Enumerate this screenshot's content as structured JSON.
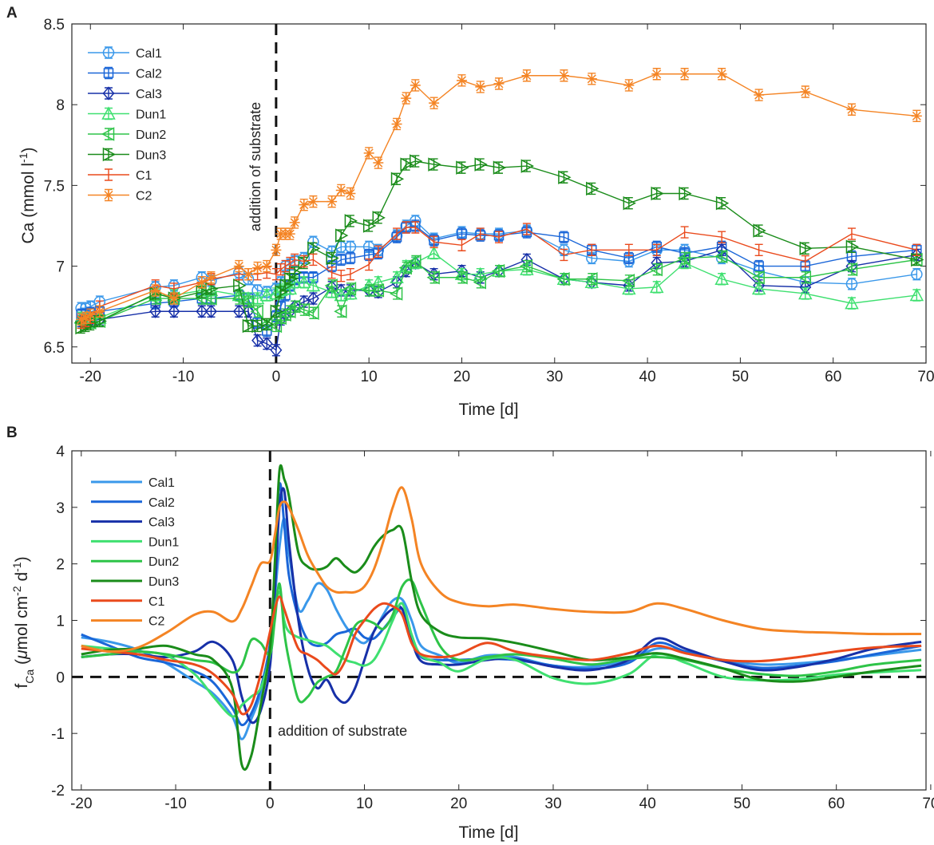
{
  "colors": {
    "Cal1": "#3a98ea",
    "Cal2": "#1a66d8",
    "Cal3": "#1730a8",
    "Dun1": "#3fe070",
    "Dun2": "#2ec448",
    "Dun3": "#1a8c1a",
    "C1": "#ea4a1c",
    "C2": "#f48424"
  },
  "chart_data": [
    {
      "panel": "A",
      "type": "line",
      "title": "",
      "xlabel": "Time [d]",
      "ylabel": "Ca (mmol l-1)",
      "ylabel_parts": {
        "base": "Ca (mmol l",
        "sup": "-1",
        "end": ")"
      },
      "xlim": [
        -22,
        70
      ],
      "ylim": [
        6.4,
        8.5
      ],
      "xticks": [
        -20,
        -10,
        0,
        10,
        20,
        30,
        40,
        50,
        60,
        70
      ],
      "xtick_labels": [
        "-20",
        "-10",
        "0",
        "10",
        "20",
        "30",
        "40",
        "50",
        "60",
        "70"
      ],
      "yticks": [
        6.5,
        7,
        7.5,
        8,
        8.5
      ],
      "ytick_labels": [
        "6.5",
        "7",
        "7.5",
        "8",
        "8.5"
      ],
      "annotation": "addition of substrate",
      "vline_x": 0,
      "legend_position": "top-left",
      "x": [
        -21,
        -20.5,
        -20,
        -19,
        -13,
        -11,
        -8,
        -7,
        -4,
        -3,
        -2,
        -1,
        0,
        0.5,
        1,
        1.5,
        2,
        3,
        4,
        6,
        7,
        8,
        10,
        11,
        13,
        14,
        15,
        17,
        20,
        22,
        24,
        27,
        31,
        34,
        38,
        41,
        44,
        48,
        52,
        57,
        62,
        69
      ],
      "series": [
        {
          "name": "Cal1",
          "marker": "circle",
          "values": [
            6.74,
            6.74,
            6.75,
            6.78,
            6.87,
            6.88,
            6.93,
            6.91,
            6.96,
            6.92,
            6.85,
            6.84,
            6.86,
            6.9,
            7.0,
            7.01,
            7.03,
            7.05,
            7.15,
            7.09,
            7.12,
            7.12,
            7.12,
            7.1,
            7.19,
            7.25,
            7.28,
            7.17,
            7.21,
            7.2,
            7.2,
            7.22,
            7.1,
            7.05,
            7.03,
            7.1,
            7.1,
            7.05,
            6.97,
            6.9,
            6.89,
            6.95
          ]
        },
        {
          "name": "Cal2",
          "marker": "square",
          "values": [
            6.7,
            6.7,
            6.71,
            6.72,
            6.77,
            6.78,
            6.8,
            6.8,
            6.82,
            6.8,
            6.65,
            6.6,
            6.69,
            6.75,
            6.82,
            6.88,
            6.92,
            6.93,
            6.93,
            7.0,
            7.04,
            7.05,
            7.07,
            7.08,
            7.18,
            7.24,
            7.25,
            7.16,
            7.2,
            7.19,
            7.19,
            7.21,
            7.18,
            7.1,
            7.05,
            7.12,
            7.08,
            7.12,
            7.0,
            7.0,
            7.06,
            7.1
          ]
        },
        {
          "name": "Cal3",
          "marker": "diamond",
          "values": [
            6.66,
            6.66,
            6.66,
            6.67,
            6.72,
            6.72,
            6.72,
            6.72,
            6.72,
            6.72,
            6.54,
            6.52,
            6.48,
            6.67,
            6.7,
            6.72,
            6.75,
            6.78,
            6.8,
            6.87,
            6.85,
            6.85,
            6.85,
            6.84,
            6.9,
            6.97,
            7.02,
            6.95,
            6.97,
            6.93,
            6.97,
            7.04,
            6.92,
            6.9,
            6.88,
            7.02,
            7.03,
            7.1,
            6.88,
            6.87,
            7.0,
            7.07
          ]
        },
        {
          "name": "Dun1",
          "marker": "triangle-up",
          "values": [
            6.68,
            6.68,
            6.68,
            6.68,
            6.82,
            6.82,
            6.85,
            6.85,
            6.82,
            6.8,
            6.8,
            6.82,
            6.83,
            6.85,
            6.86,
            6.86,
            6.9,
            6.9,
            6.88,
            6.84,
            6.82,
            6.83,
            6.88,
            6.9,
            6.93,
            7.0,
            7.02,
            7.08,
            6.95,
            6.95,
            6.97,
            6.98,
            6.92,
            6.9,
            6.86,
            6.87,
            7.02,
            6.92,
            6.86,
            6.83,
            6.77,
            6.82
          ]
        },
        {
          "name": "Dun2",
          "marker": "triangle-left",
          "values": [
            6.65,
            6.65,
            6.65,
            6.66,
            6.8,
            6.8,
            6.8,
            6.8,
            6.8,
            6.78,
            6.72,
            6.64,
            6.63,
            6.68,
            6.7,
            6.72,
            6.75,
            6.73,
            6.71,
            6.88,
            6.72,
            6.86,
            6.85,
            6.85,
            6.83,
            6.99,
            7.03,
            6.93,
            6.93,
            6.9,
            6.97,
            7.0,
            6.92,
            6.92,
            6.91,
            6.98,
            7.05,
            7.06,
            6.93,
            6.93,
            6.98,
            7.04
          ]
        },
        {
          "name": "Dun3",
          "marker": "triangle-right",
          "values": [
            6.62,
            6.63,
            6.64,
            6.66,
            6.83,
            6.8,
            6.84,
            6.86,
            6.88,
            6.63,
            6.63,
            6.64,
            6.72,
            6.84,
            6.88,
            6.92,
            6.96,
            7.02,
            7.11,
            7.05,
            7.19,
            7.28,
            7.25,
            7.3,
            7.54,
            7.63,
            7.65,
            7.63,
            7.61,
            7.63,
            7.61,
            7.62,
            7.55,
            7.48,
            7.39,
            7.45,
            7.45,
            7.39,
            7.22,
            7.11,
            7.12,
            7.04
          ]
        },
        {
          "name": "C1",
          "marker": "errorbar",
          "values": [
            6.65,
            6.66,
            6.68,
            6.75,
            6.88,
            6.86,
            6.9,
            6.92,
            6.95,
            6.95,
            6.95,
            6.96,
            6.95,
            6.98,
            7.0,
            7.02,
            7.04,
            7.03,
            7.04,
            6.96,
            6.94,
            6.95,
            7.01,
            7.09,
            7.2,
            7.24,
            7.24,
            7.15,
            7.13,
            7.2,
            7.18,
            7.23,
            7.07,
            7.1,
            7.1,
            7.1,
            7.21,
            7.18,
            7.1,
            7.03,
            7.2,
            7.1
          ]
        },
        {
          "name": "C2",
          "marker": "asterisk",
          "values": [
            6.67,
            6.68,
            6.7,
            6.72,
            6.85,
            6.8,
            6.9,
            6.93,
            7.0,
            6.95,
            6.99,
            7.0,
            7.1,
            7.2,
            7.2,
            7.2,
            7.27,
            7.38,
            7.4,
            7.4,
            7.47,
            7.45,
            7.7,
            7.64,
            7.88,
            8.04,
            8.12,
            8.01,
            8.15,
            8.11,
            8.13,
            8.18,
            8.18,
            8.16,
            8.12,
            8.19,
            8.19,
            8.19,
            8.06,
            8.08,
            7.97,
            7.93
          ]
        }
      ]
    },
    {
      "panel": "B",
      "type": "line",
      "title": "",
      "xlabel": "Time [d]",
      "ylabel": "fCa (μmol cm-2 d-1)",
      "ylabel_parts": {
        "f": "f",
        "sub": "Ca",
        "open": " (",
        "mu": "μ",
        "unit": "mol cm",
        "sup1": "-2",
        "mid": " d",
        "sup2": "-1",
        "end": ")"
      },
      "xlim": [
        -21,
        69.5
      ],
      "ylim": [
        -2,
        4
      ],
      "xticks": [
        -20,
        -10,
        0,
        10,
        20,
        30,
        40,
        50,
        60,
        70
      ],
      "xtick_labels": [
        "-20",
        "-10",
        "0",
        "10",
        "20",
        "30",
        "40",
        "50",
        "60",
        "70"
      ],
      "yticks": [
        -2,
        -1,
        0,
        1,
        2,
        3,
        4
      ],
      "ytick_labels": [
        "-2",
        "-1",
        "0",
        "1",
        "2",
        "3",
        "4"
      ],
      "annotation": "addition of substrate",
      "vline_x": 0,
      "hline_y": 0,
      "legend_position": "top-left",
      "x": [
        -20,
        -17,
        -14,
        -11,
        -8,
        -6,
        -4,
        -3,
        -2,
        -1,
        0,
        0.5,
        1,
        1.5,
        2,
        3,
        4,
        5,
        6,
        7,
        8,
        9,
        10,
        11,
        12,
        13,
        14,
        15,
        16,
        18,
        20,
        23,
        26,
        30,
        34,
        38,
        41,
        44,
        48,
        52,
        56,
        60,
        64,
        69
      ],
      "series": [
        {
          "name": "Cal1",
          "values": [
            0.7,
            0.62,
            0.48,
            0.24,
            -0.08,
            -0.3,
            -0.7,
            -1.1,
            -0.75,
            -0.3,
            0.5,
            1.4,
            2.3,
            2.8,
            2.2,
            1.2,
            1.35,
            1.65,
            1.55,
            1.2,
            0.9,
            0.7,
            0.6,
            0.8,
            1.1,
            1.35,
            1.37,
            1.0,
            0.55,
            0.38,
            0.25,
            0.38,
            0.35,
            0.2,
            0.18,
            0.3,
            0.5,
            0.45,
            0.3,
            0.22,
            0.24,
            0.3,
            0.38,
            0.48
          ]
        },
        {
          "name": "Cal2",
          "values": [
            0.75,
            0.55,
            0.35,
            0.25,
            0.1,
            -0.1,
            -0.55,
            -0.85,
            -0.65,
            -0.2,
            0.6,
            1.8,
            3.4,
            2.7,
            1.8,
            1.05,
            0.65,
            0.55,
            0.6,
            0.75,
            0.8,
            0.85,
            0.7,
            0.68,
            0.85,
            1.05,
            1.2,
            0.7,
            0.35,
            0.3,
            0.3,
            0.32,
            0.3,
            0.2,
            0.14,
            0.25,
            0.6,
            0.45,
            0.28,
            0.16,
            0.2,
            0.28,
            0.4,
            0.55
          ]
        },
        {
          "name": "Cal3",
          "values": [
            0.35,
            0.4,
            0.4,
            0.35,
            0.45,
            0.62,
            0.3,
            -0.35,
            -0.8,
            -0.6,
            0.2,
            1.5,
            3.0,
            3.3,
            2.4,
            1.0,
            0.15,
            -0.2,
            -0.05,
            -0.35,
            -0.45,
            -0.2,
            0.3,
            0.8,
            1.05,
            1.2,
            1.2,
            0.65,
            0.28,
            0.22,
            0.22,
            0.3,
            0.32,
            0.18,
            0.12,
            0.3,
            0.68,
            0.5,
            0.28,
            0.12,
            0.18,
            0.32,
            0.5,
            0.62
          ]
        },
        {
          "name": "Dun1",
          "values": [
            0.55,
            0.5,
            0.45,
            0.38,
            0.05,
            -0.35,
            -0.7,
            -0.5,
            -0.35,
            -0.2,
            0.4,
            1.2,
            1.5,
            1.0,
            0.8,
            0.7,
            0.65,
            0.6,
            0.55,
            0.42,
            0.3,
            0.25,
            0.2,
            0.3,
            0.6,
            1.0,
            1.3,
            0.75,
            0.38,
            0.25,
            0.1,
            0.32,
            0.3,
            -0.02,
            -0.12,
            0.05,
            0.4,
            0.25,
            0.0,
            -0.06,
            -0.04,
            0.04,
            0.08,
            0.12
          ]
        },
        {
          "name": "Dun2",
          "values": [
            0.35,
            0.4,
            0.45,
            0.4,
            0.3,
            0.25,
            0.08,
            0.2,
            0.65,
            0.6,
            0.4,
            1.0,
            1.65,
            0.8,
            0.3,
            -0.4,
            -0.35,
            -0.1,
            0.0,
            0.1,
            0.5,
            0.9,
            1.0,
            0.95,
            0.85,
            1.1,
            1.6,
            1.7,
            1.3,
            0.55,
            0.3,
            0.35,
            0.4,
            0.32,
            0.22,
            0.32,
            0.35,
            0.3,
            0.15,
            0.05,
            0.02,
            0.1,
            0.22,
            0.3
          ]
        },
        {
          "name": "Dun3",
          "values": [
            0.4,
            0.48,
            0.5,
            0.55,
            0.4,
            0.3,
            -0.2,
            -1.55,
            -1.4,
            -0.5,
            0.5,
            2.0,
            3.65,
            3.5,
            3.2,
            2.2,
            1.95,
            1.9,
            1.95,
            2.1,
            1.95,
            1.85,
            2.0,
            2.3,
            2.5,
            2.6,
            2.6,
            1.7,
            1.1,
            0.8,
            0.7,
            0.68,
            0.6,
            0.45,
            0.3,
            0.35,
            0.42,
            0.32,
            0.15,
            -0.05,
            -0.08,
            0.0,
            0.1,
            0.2
          ]
        },
        {
          "name": "C1",
          "values": [
            0.5,
            0.45,
            0.4,
            0.3,
            0.22,
            0.05,
            -0.3,
            -0.65,
            -0.5,
            0.05,
            0.8,
            1.2,
            1.42,
            1.2,
            0.95,
            0.5,
            0.4,
            0.3,
            0.15,
            0.05,
            0.3,
            0.75,
            1.0,
            1.2,
            1.3,
            1.25,
            1.1,
            0.6,
            0.4,
            0.35,
            0.4,
            0.6,
            0.45,
            0.35,
            0.3,
            0.42,
            0.55,
            0.42,
            0.3,
            0.28,
            0.35,
            0.45,
            0.52,
            0.55
          ]
        },
        {
          "name": "C2",
          "values": [
            0.55,
            0.45,
            0.52,
            0.78,
            1.1,
            1.15,
            0.98,
            1.2,
            1.6,
            2.0,
            2.05,
            2.5,
            3.0,
            3.1,
            3.0,
            2.6,
            2.15,
            1.85,
            1.6,
            1.5,
            1.5,
            1.5,
            1.6,
            1.9,
            2.4,
            3.0,
            3.35,
            2.8,
            2.0,
            1.5,
            1.32,
            1.25,
            1.28,
            1.2,
            1.15,
            1.15,
            1.3,
            1.2,
            1.0,
            0.85,
            0.8,
            0.78,
            0.76,
            0.76
          ]
        }
      ]
    }
  ]
}
